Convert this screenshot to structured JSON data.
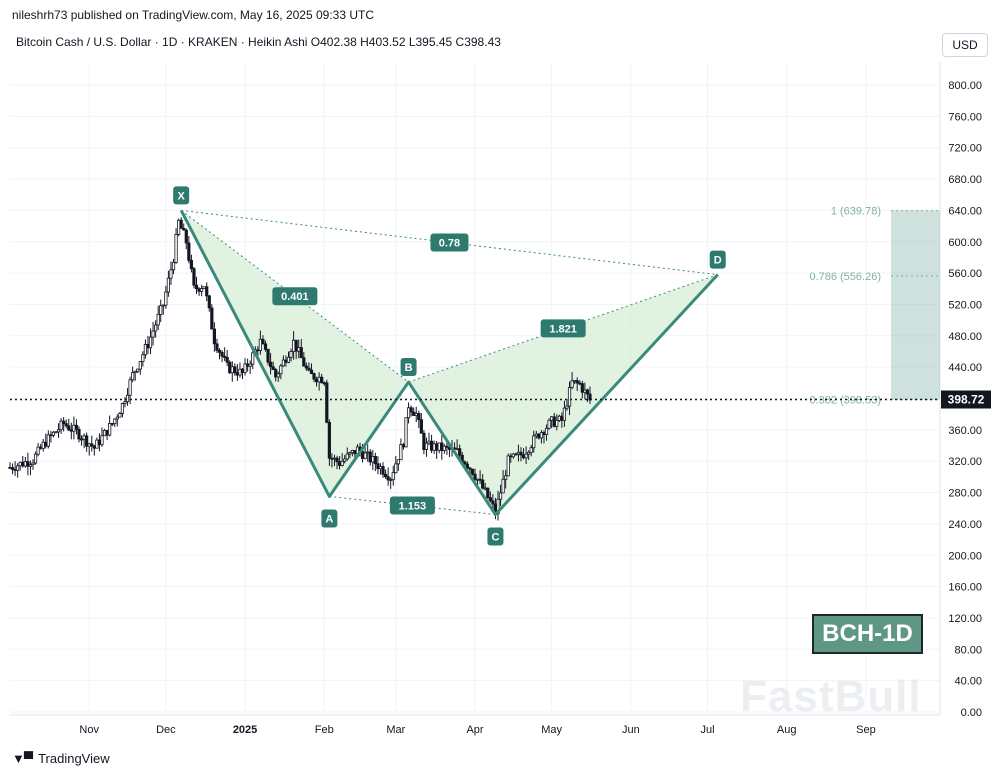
{
  "header": {
    "publisher": "nileshrh73 published on TradingView.com, May 16, 2025 09:33 UTC",
    "symbol_line": "Bitcoin Cash / U.S. Dollar · 1D · KRAKEN · Heikin Ashi  O402.38  H403.52  L395.45  C398.43",
    "currency_label": "USD"
  },
  "footer": {
    "brand": "TradingView"
  },
  "badge": {
    "label": "BCH-1D"
  },
  "watermark": {
    "text": "FastBull"
  },
  "colors": {
    "pattern_line": "#3a8a7a",
    "pattern_fill": "#d4ecd4",
    "label_bg": "#2f7a6e",
    "candle": "#131722",
    "projection_box": "#a6c8c0",
    "price_tag": "#131722"
  },
  "chart_data": {
    "type": "candlestick",
    "title": "Bitcoin Cash / U.S. Dollar · 1D · KRAKEN · Heikin Ashi",
    "ylabel": "USD",
    "ylim": [
      0,
      830
    ],
    "x_range": [
      "2024-10-01",
      "2025-09-30"
    ],
    "y_ticks": [
      "800.00",
      "760.00",
      "720.00",
      "680.00",
      "640.00",
      "600.00",
      "560.00",
      "520.00",
      "480.00",
      "440.00",
      "400.00",
      "360.00",
      "320.00",
      "280.00",
      "240.00",
      "200.00",
      "160.00",
      "120.00",
      "80.00",
      "40.00",
      "0.00"
    ],
    "x_ticks": [
      {
        "date": "2024-11-01",
        "label": "Nov"
      },
      {
        "date": "2024-12-01",
        "label": "Dec"
      },
      {
        "date": "2025-01-01",
        "label": "2025"
      },
      {
        "date": "2025-02-01",
        "label": "Feb"
      },
      {
        "date": "2025-03-01",
        "label": "Mar"
      },
      {
        "date": "2025-04-01",
        "label": "Apr"
      },
      {
        "date": "2025-05-01",
        "label": "May"
      },
      {
        "date": "2025-06-01",
        "label": "Jun"
      },
      {
        "date": "2025-07-01",
        "label": "Jul"
      },
      {
        "date": "2025-08-01",
        "label": "Aug"
      },
      {
        "date": "2025-09-01",
        "label": "Sep"
      }
    ],
    "price_path": [
      [
        "2024-10-01",
        312
      ],
      [
        "2024-10-10",
        322
      ],
      [
        "2024-10-15",
        345
      ],
      [
        "2024-10-22",
        368
      ],
      [
        "2024-10-28",
        355
      ],
      [
        "2024-11-03",
        337
      ],
      [
        "2024-11-10",
        368
      ],
      [
        "2024-11-14",
        392
      ],
      [
        "2024-11-18",
        430
      ],
      [
        "2024-11-24",
        470
      ],
      [
        "2024-11-30",
        520
      ],
      [
        "2024-12-04",
        580
      ],
      [
        "2024-12-06",
        625
      ],
      [
        "2024-12-09",
        600
      ],
      [
        "2024-12-12",
        540
      ],
      [
        "2024-12-16",
        545
      ],
      [
        "2024-12-20",
        475
      ],
      [
        "2024-12-25",
        440
      ],
      [
        "2024-12-31",
        432
      ],
      [
        "2025-01-07",
        472
      ],
      [
        "2025-01-13",
        428
      ],
      [
        "2025-01-20",
        472
      ],
      [
        "2025-01-26",
        430
      ],
      [
        "2025-02-01",
        425
      ],
      [
        "2025-02-03",
        325
      ],
      [
        "2025-02-07",
        318
      ],
      [
        "2025-02-14",
        335
      ],
      [
        "2025-02-21",
        318
      ],
      [
        "2025-02-27",
        300
      ],
      [
        "2025-03-04",
        345
      ],
      [
        "2025-03-06",
        392
      ],
      [
        "2025-03-09",
        380
      ],
      [
        "2025-03-12",
        340
      ],
      [
        "2025-03-18",
        337
      ],
      [
        "2025-03-25",
        332
      ],
      [
        "2025-03-31",
        308
      ],
      [
        "2025-04-05",
        280
      ],
      [
        "2025-04-09",
        255
      ],
      [
        "2025-04-14",
        320
      ],
      [
        "2025-04-20",
        330
      ],
      [
        "2025-04-26",
        355
      ],
      [
        "2025-05-01",
        370
      ],
      [
        "2025-05-05",
        372
      ],
      [
        "2025-05-09",
        420
      ],
      [
        "2025-05-12",
        418
      ],
      [
        "2025-05-16",
        398
      ]
    ],
    "current_price": 398.72,
    "current_price_label": "398.72",
    "harmonic_pattern": {
      "points": [
        {
          "label": "X",
          "date": "2024-12-07",
          "price": 640
        },
        {
          "label": "A",
          "date": "2025-02-03",
          "price": 275
        },
        {
          "label": "B",
          "date": "2025-03-06",
          "price": 421
        },
        {
          "label": "C",
          "date": "2025-04-09",
          "price": 252
        },
        {
          "label": "D",
          "date": "2025-07-05",
          "price": 558
        }
      ],
      "ratios": [
        {
          "label": "0.401",
          "from": "X",
          "to": "B"
        },
        {
          "label": "1.153",
          "from": "A",
          "to": "C"
        },
        {
          "label": "1.821",
          "from": "B",
          "to": "D"
        },
        {
          "label": "0.78",
          "from": "X",
          "to": "D"
        }
      ]
    },
    "fib_levels": [
      {
        "label": "1 (639.78)",
        "value": 639.78
      },
      {
        "label": "0.786 (556.26)",
        "value": 556.26
      },
      {
        "label": "0.382 (398.53)",
        "value": 398.53
      }
    ]
  }
}
